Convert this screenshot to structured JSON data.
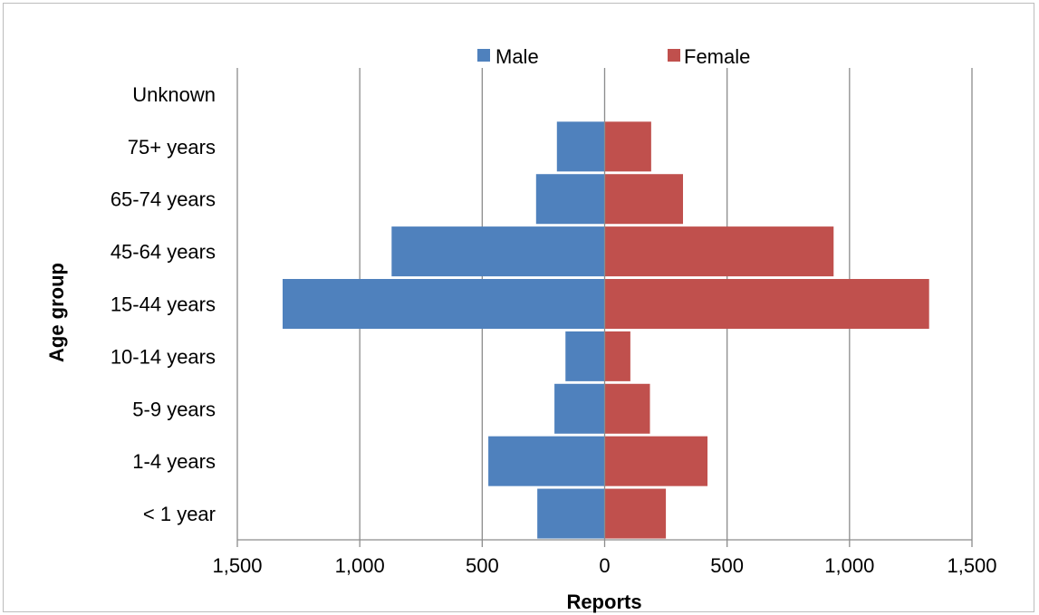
{
  "chart_data": {
    "type": "bar",
    "orientation": "horizontal",
    "layout": "population-pyramid",
    "title": "",
    "xlabel": "Reports",
    "ylabel": "Age group",
    "categories": [
      "< 1 year",
      "1-4 years",
      "5-9 years",
      "10-14 years",
      "15-44 years",
      "45-64 years",
      "65-74 years",
      "75+ years",
      "Unknown"
    ],
    "series": [
      {
        "name": "Male",
        "color": "#4f81bd",
        "side": "left",
        "values": [
          275,
          475,
          205,
          160,
          1315,
          870,
          280,
          195,
          2
        ]
      },
      {
        "name": "Female",
        "color": "#c0504d",
        "side": "right",
        "values": [
          250,
          420,
          185,
          105,
          1325,
          935,
          320,
          190,
          0
        ]
      }
    ],
    "xlim": [
      -1500,
      1500
    ],
    "xticks": [
      -1500,
      -1000,
      -500,
      0,
      500,
      1000,
      1500
    ],
    "xtick_labels": [
      "1,500",
      "1,000",
      "500",
      "0",
      "500",
      "1,000",
      "1,500"
    ],
    "grid": "vertical",
    "legend": "top"
  }
}
